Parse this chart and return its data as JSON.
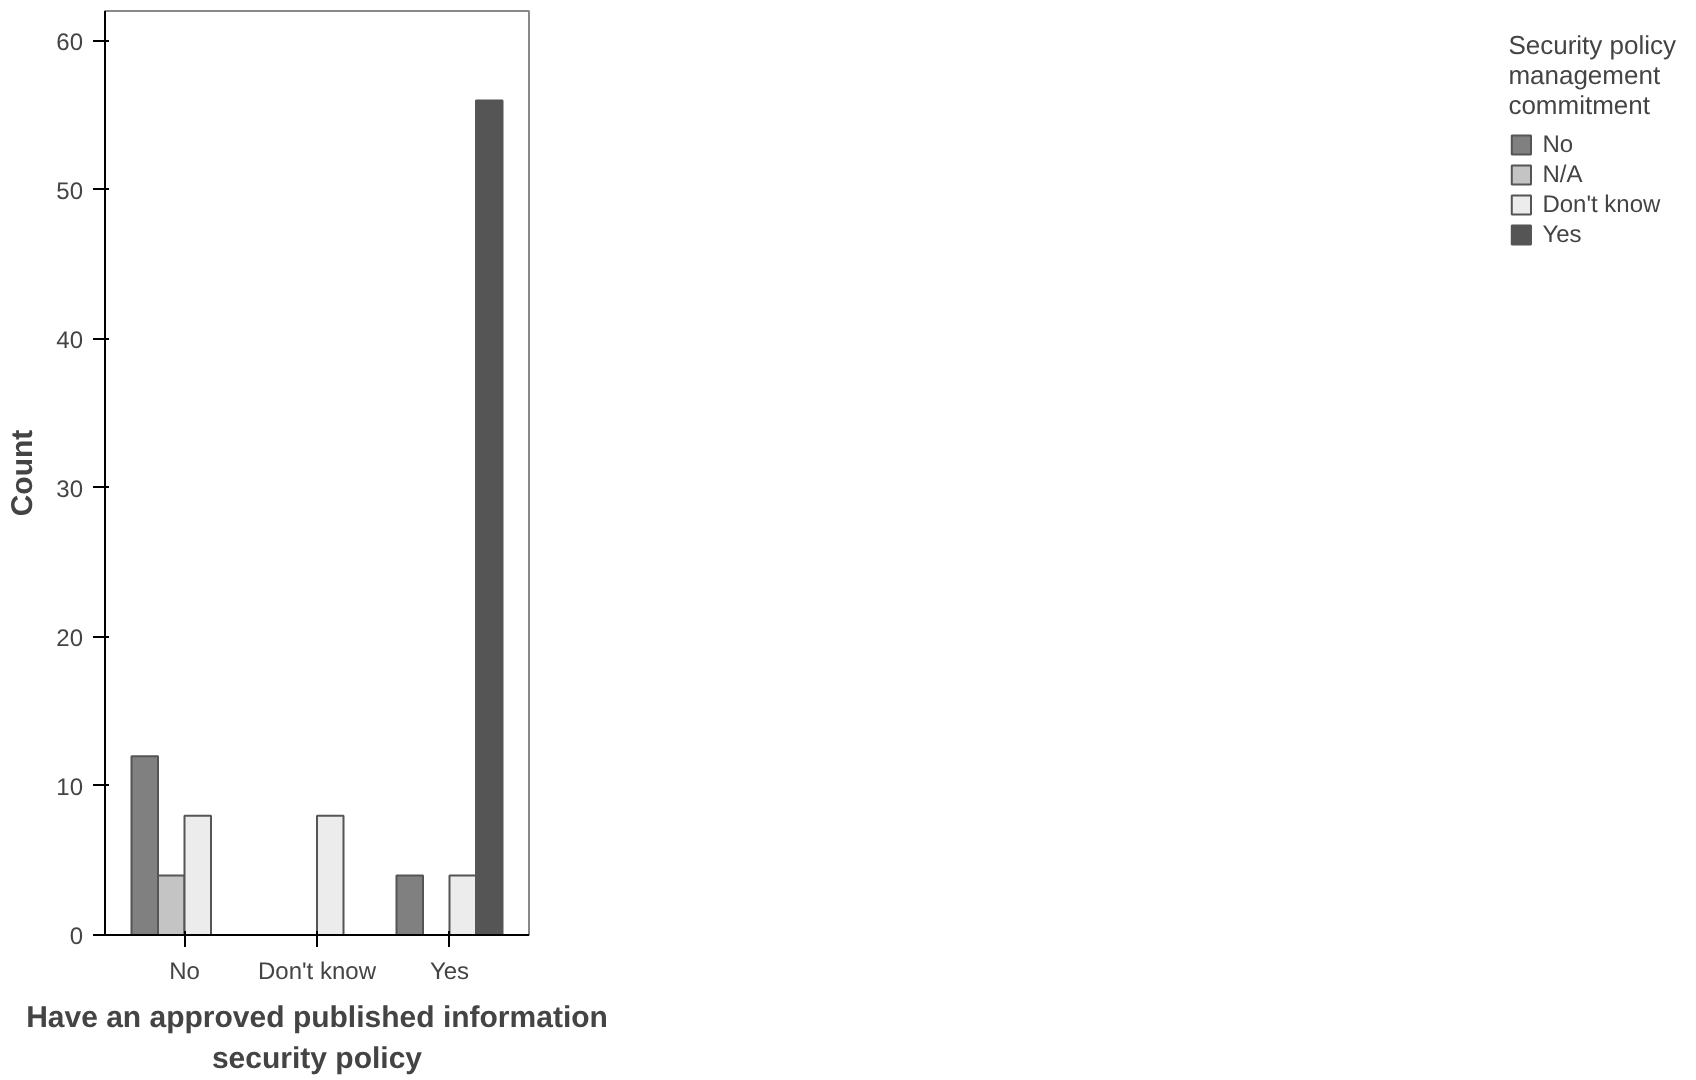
{
  "chart_data": {
    "type": "bar",
    "xlabel": "Have an approved published information security policy",
    "ylabel": "Count",
    "legend_title": "Security policy management commitment",
    "categories": [
      "No",
      "Don't know",
      "Yes"
    ],
    "series": [
      {
        "name": "No",
        "color": "#808080",
        "values": [
          12,
          null,
          4
        ]
      },
      {
        "name": "N/A",
        "color": "#c4c4c4",
        "values": [
          4,
          null,
          null
        ]
      },
      {
        "name": "Don't know",
        "color": "#ececec",
        "values": [
          8,
          8,
          4
        ]
      },
      {
        "name": "Yes",
        "color": "#555555",
        "values": [
          null,
          null,
          56
        ]
      }
    ],
    "ylim": [
      0,
      62
    ],
    "yticks": [
      0,
      10,
      20,
      30,
      40,
      50,
      60
    ],
    "grid": false,
    "legend": "top right"
  }
}
